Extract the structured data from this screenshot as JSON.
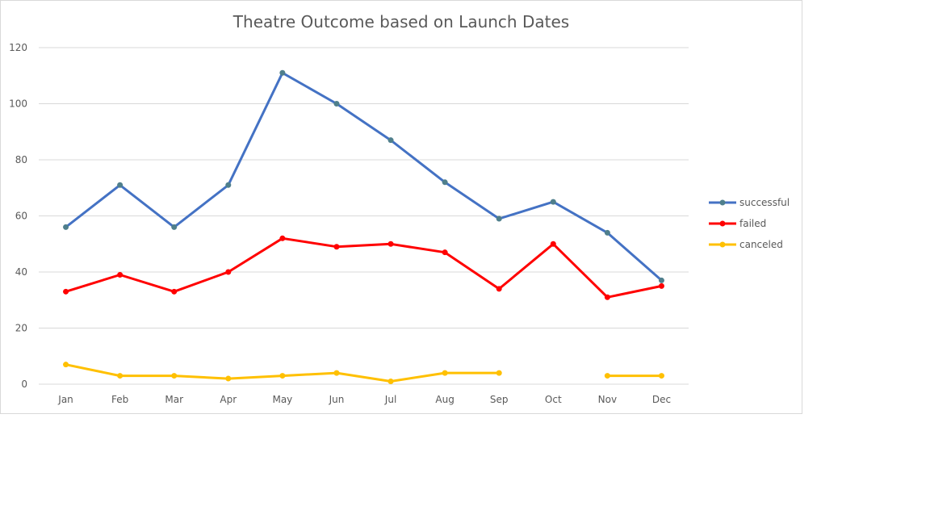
{
  "chart_data": {
    "type": "line",
    "title": "Theatre Outcome based on Launch Dates",
    "xlabel": "",
    "ylabel": "",
    "categories": [
      "Jan",
      "Feb",
      "Mar",
      "Apr",
      "May",
      "Jun",
      "Jul",
      "Aug",
      "Sep",
      "Oct",
      "Nov",
      "Dec"
    ],
    "y_ticks": [
      "0",
      "20",
      "40",
      "60",
      "80",
      "100",
      "120"
    ],
    "ylim": [
      0,
      120
    ],
    "grid": true,
    "legend_position": "right",
    "series": [
      {
        "name": "successful",
        "color": "#4472c4",
        "values": [
          56,
          71,
          56,
          71,
          111,
          100,
          87,
          72,
          59,
          65,
          54,
          37
        ]
      },
      {
        "name": "failed",
        "color": "#ff0000",
        "values": [
          33,
          39,
          33,
          40,
          52,
          49,
          50,
          47,
          34,
          50,
          31,
          35
        ]
      },
      {
        "name": "canceled",
        "color": "#ffc000",
        "values": [
          7,
          3,
          3,
          2,
          3,
          4,
          1,
          4,
          4,
          null,
          3,
          3
        ]
      }
    ]
  }
}
